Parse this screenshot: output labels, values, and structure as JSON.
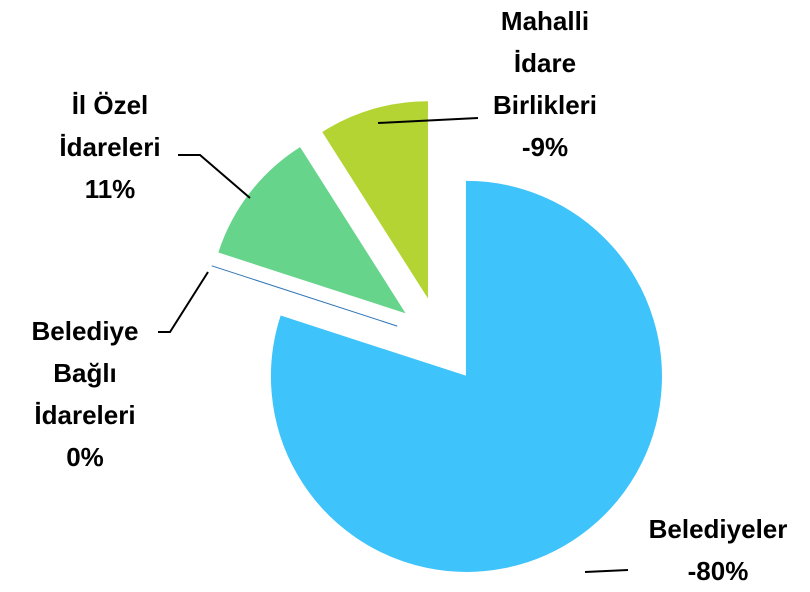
{
  "chart_data": {
    "type": "pie",
    "categories": [
      "Belediyeler",
      "Belediye Bağlı İdareleri",
      "İl Özel İdareleri",
      "Mahalli İdare Birlikleri"
    ],
    "values": [
      -80,
      0,
      11,
      -9
    ],
    "value_labels": [
      "-80%",
      "0%",
      "11%",
      "-9%"
    ],
    "colors": [
      "#3ec3fb",
      "#2e75b6",
      "#66d48a",
      "#b3d433"
    ]
  }
}
